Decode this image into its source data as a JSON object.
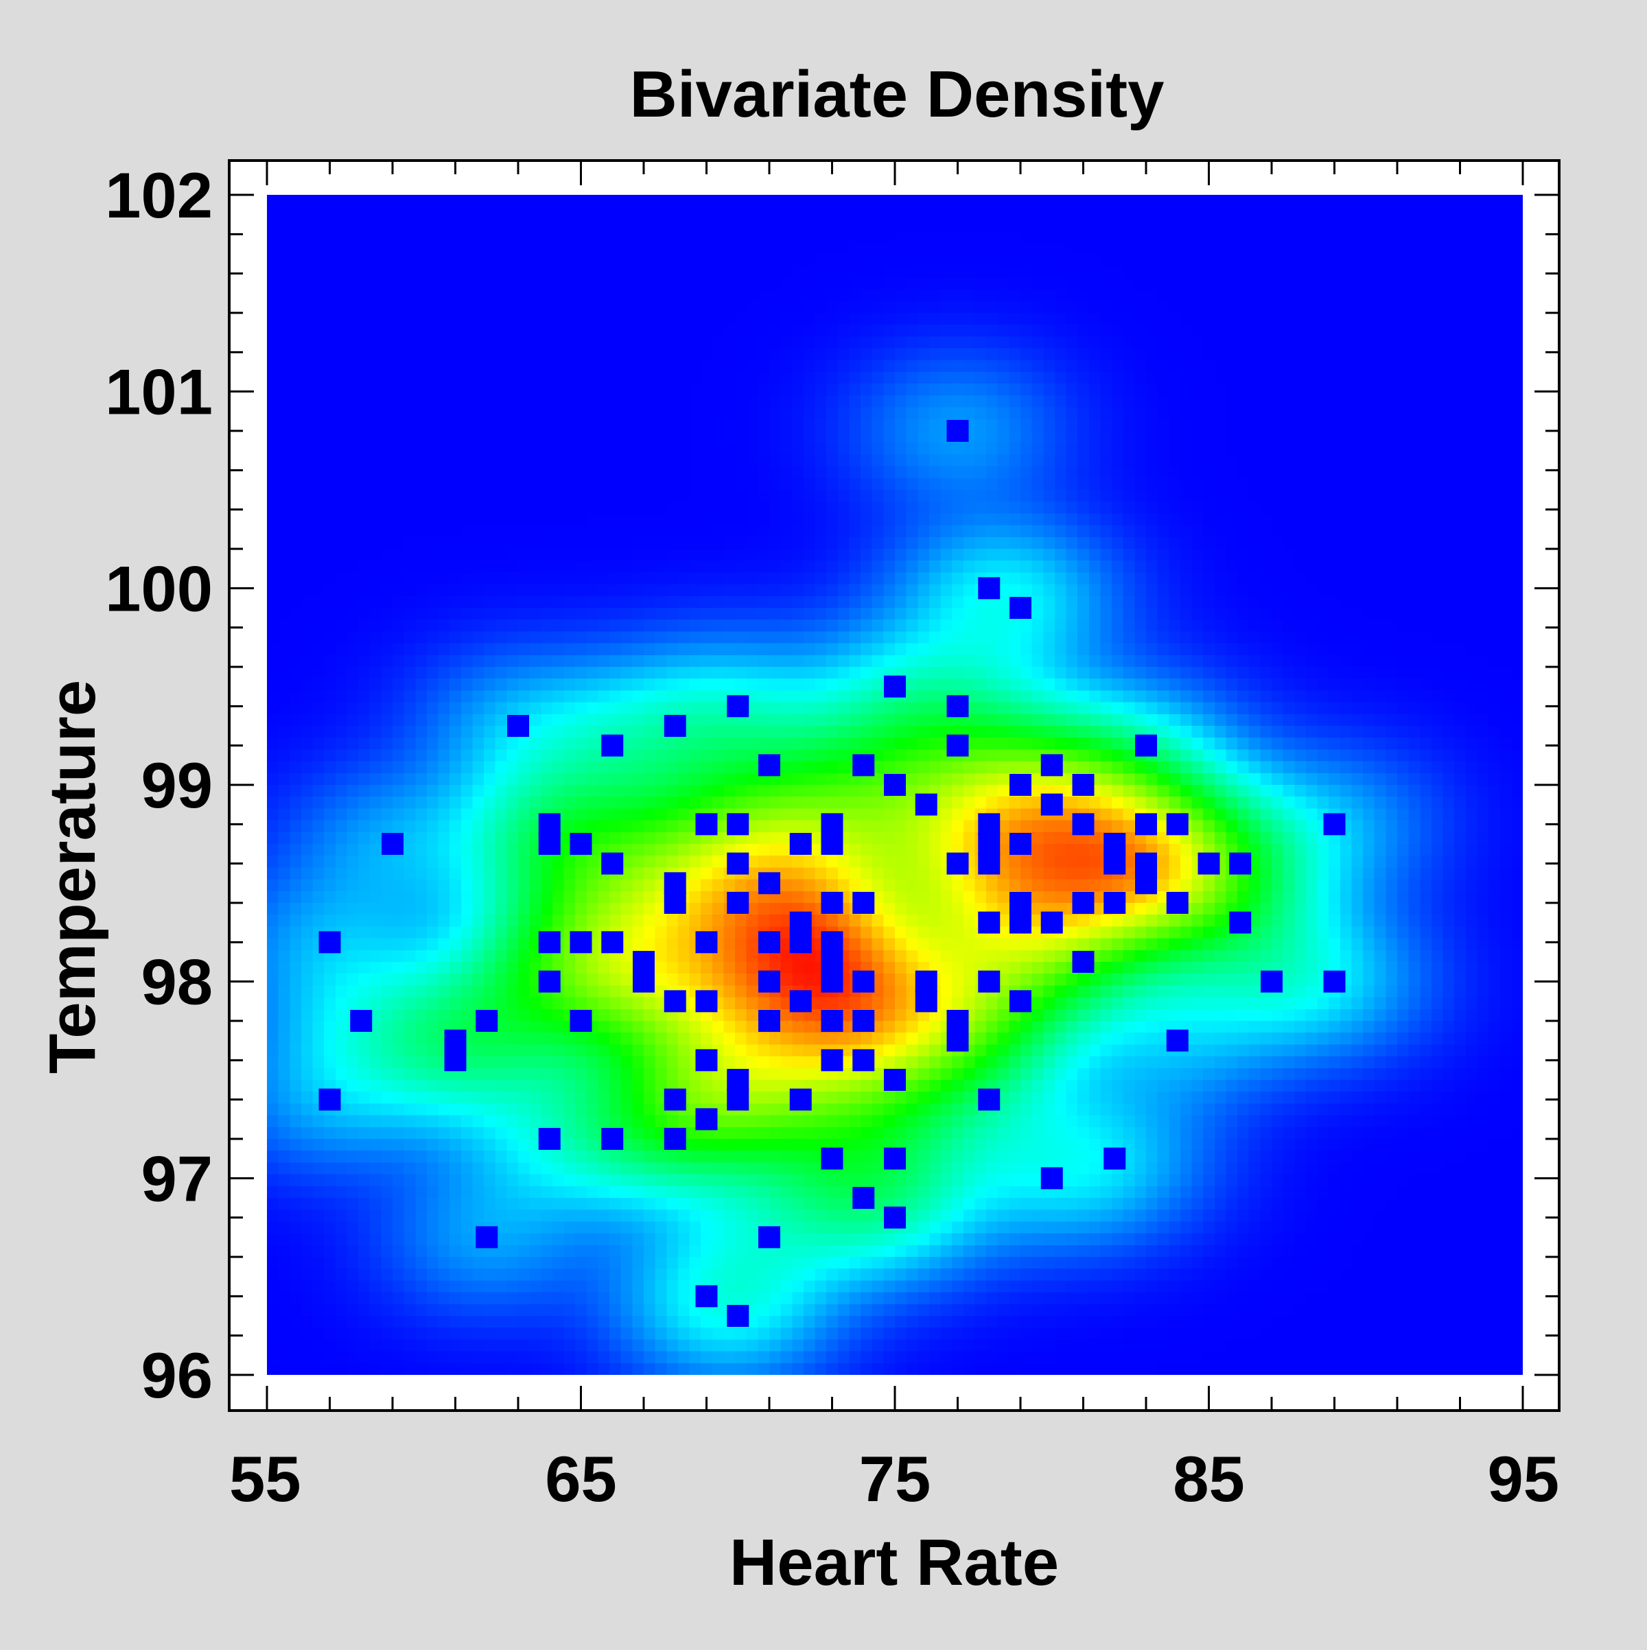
{
  "chart_data": {
    "type": "heatmap",
    "title": "Bivariate Density",
    "xlabel": "Heart Rate",
    "ylabel": "Temperature",
    "xlim": [
      55,
      95
    ],
    "ylim": [
      96,
      102
    ],
    "x_ticks": [
      55,
      65,
      75,
      85,
      95
    ],
    "y_ticks": [
      96,
      97,
      98,
      99,
      100,
      101,
      102
    ],
    "x_tick_labels": [
      "55",
      "65",
      "75",
      "85",
      "95"
    ],
    "y_tick_labels": [
      "96",
      "97",
      "98",
      "99",
      "100",
      "101",
      "102"
    ],
    "colormap": [
      "#0000ff",
      "#00ffff",
      "#00ff00",
      "#ffff00",
      "#ff0000"
    ],
    "background_color": "#dcdcdc",
    "plot_fill": "#ffffff",
    "marker_color": "#0000ff",
    "points": [
      [
        57,
        98.2
      ],
      [
        57,
        97.4
      ],
      [
        58,
        97.8
      ],
      [
        59,
        98.7
      ],
      [
        61,
        97.6
      ],
      [
        61,
        97.7
      ],
      [
        62,
        97.8
      ],
      [
        62,
        96.7
      ],
      [
        63,
        99.3
      ],
      [
        64,
        98.8
      ],
      [
        64,
        98.7
      ],
      [
        64,
        98.2
      ],
      [
        64,
        98.0
      ],
      [
        64,
        97.2
      ],
      [
        65,
        98.7
      ],
      [
        65,
        98.2
      ],
      [
        65,
        97.8
      ],
      [
        66,
        99.2
      ],
      [
        66,
        98.6
      ],
      [
        66,
        98.2
      ],
      [
        66,
        97.2
      ],
      [
        67,
        98.1
      ],
      [
        67,
        98.0
      ],
      [
        68,
        99.3
      ],
      [
        68,
        98.5
      ],
      [
        68,
        98.4
      ],
      [
        68,
        97.9
      ],
      [
        68,
        97.4
      ],
      [
        68,
        97.2
      ],
      [
        69,
        98.8
      ],
      [
        69,
        98.2
      ],
      [
        69,
        97.9
      ],
      [
        69,
        97.6
      ],
      [
        69,
        97.3
      ],
      [
        69,
        96.4
      ],
      [
        70,
        99.4
      ],
      [
        70,
        98.8
      ],
      [
        70,
        98.6
      ],
      [
        70,
        98.4
      ],
      [
        70,
        97.5
      ],
      [
        70,
        97.4
      ],
      [
        70,
        96.3
      ],
      [
        71,
        99.1
      ],
      [
        71,
        98.5
      ],
      [
        71,
        98.2
      ],
      [
        71,
        98.0
      ],
      [
        71,
        97.8
      ],
      [
        71,
        96.7
      ],
      [
        72,
        98.7
      ],
      [
        72,
        98.3
      ],
      [
        72,
        98.2
      ],
      [
        72,
        97.9
      ],
      [
        72,
        97.4
      ],
      [
        73,
        98.8
      ],
      [
        73,
        98.7
      ],
      [
        73,
        98.4
      ],
      [
        73,
        98.2
      ],
      [
        73,
        98.1
      ],
      [
        73,
        98.0
      ],
      [
        73,
        97.8
      ],
      [
        73,
        97.6
      ],
      [
        73,
        97.1
      ],
      [
        74,
        99.1
      ],
      [
        74,
        98.4
      ],
      [
        74,
        98.0
      ],
      [
        74,
        97.8
      ],
      [
        74,
        97.6
      ],
      [
        74,
        96.9
      ],
      [
        75,
        99.5
      ],
      [
        75,
        99.0
      ],
      [
        75,
        97.5
      ],
      [
        75,
        97.1
      ],
      [
        75,
        96.8
      ],
      [
        76,
        98.9
      ],
      [
        76,
        98.0
      ],
      [
        76,
        97.9
      ],
      [
        77,
        100.8
      ],
      [
        77,
        99.4
      ],
      [
        77,
        99.2
      ],
      [
        77,
        98.6
      ],
      [
        77,
        97.8
      ],
      [
        77,
        97.7
      ],
      [
        78,
        100.0
      ],
      [
        78,
        98.8
      ],
      [
        78,
        98.7
      ],
      [
        78,
        98.6
      ],
      [
        78,
        98.3
      ],
      [
        78,
        98.0
      ],
      [
        78,
        97.4
      ],
      [
        79,
        99.9
      ],
      [
        79,
        99.0
      ],
      [
        79,
        98.7
      ],
      [
        79,
        98.4
      ],
      [
        79,
        98.3
      ],
      [
        79,
        97.9
      ],
      [
        80,
        99.1
      ],
      [
        80,
        98.9
      ],
      [
        80,
        98.3
      ],
      [
        80,
        97.0
      ],
      [
        81,
        99.0
      ],
      [
        81,
        98.8
      ],
      [
        81,
        98.4
      ],
      [
        81,
        98.1
      ],
      [
        82,
        98.7
      ],
      [
        82,
        98.6
      ],
      [
        82,
        98.4
      ],
      [
        82,
        97.1
      ],
      [
        83,
        99.2
      ],
      [
        83,
        98.8
      ],
      [
        83,
        98.6
      ],
      [
        83,
        98.5
      ],
      [
        84,
        98.8
      ],
      [
        84,
        98.4
      ],
      [
        84,
        97.7
      ],
      [
        85,
        98.6
      ],
      [
        86,
        98.6
      ],
      [
        86,
        98.3
      ],
      [
        87,
        98.0
      ],
      [
        89,
        98.8
      ],
      [
        89,
        98.0
      ]
    ]
  }
}
